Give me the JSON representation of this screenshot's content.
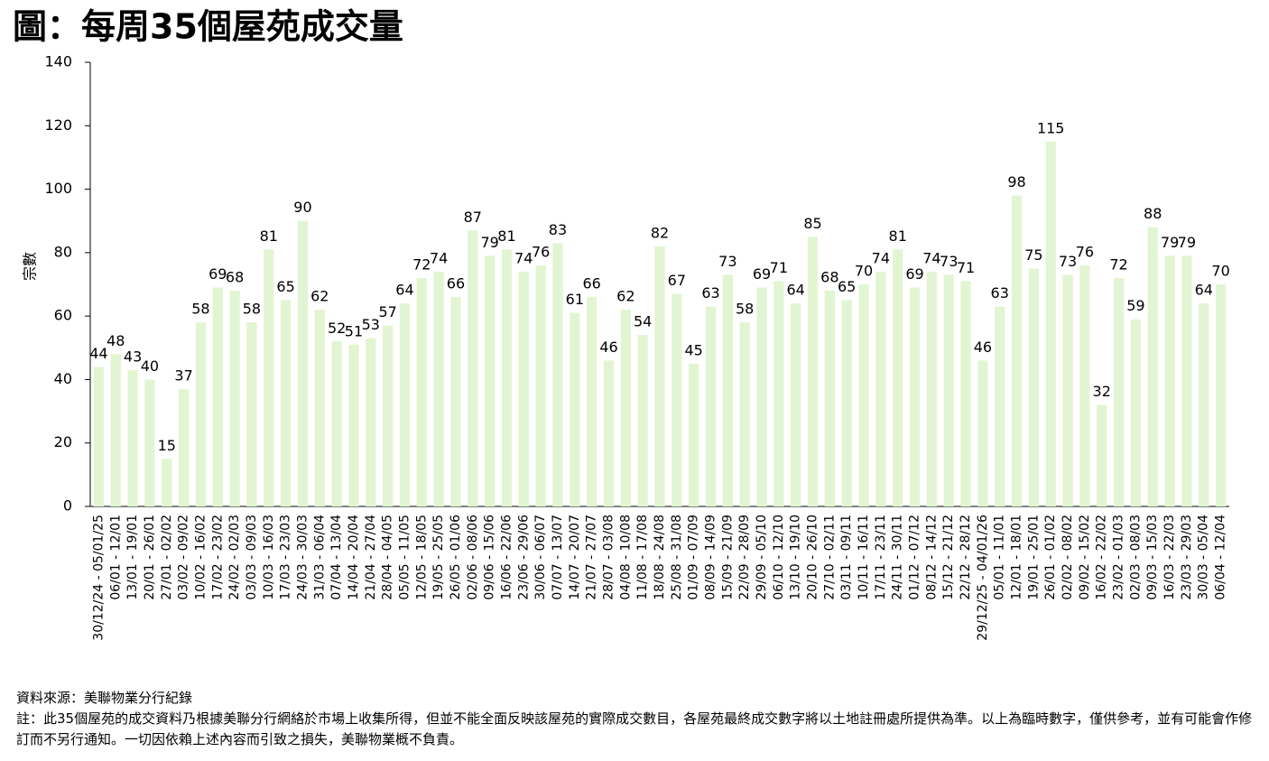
{
  "chart_data": {
    "type": "bar",
    "title": "圖：每周35個屋苑成交量",
    "y_label": "宗數",
    "categories": [
      "30/12/24 - 05/01/25",
      "06/01 - 12/01",
      "13/01 - 19/01",
      "20/01 - 26/01",
      "27/01 - 02/02",
      "03/02 - 09/02",
      "10/02 - 16/02",
      "17/02 - 23/02",
      "24/02 - 02/03",
      "03/03 - 09/03",
      "10/03 - 16/03",
      "17/03 - 23/03",
      "24/03 - 30/03",
      "31/03 - 06/04",
      "07/04 - 13/04",
      "14/04 - 20/04",
      "21/04 - 27/04",
      "28/04 - 04/05",
      "05/05 - 11/05",
      "12/05 - 18/05",
      "19/05 - 25/05",
      "26/05 - 01/06",
      "02/06 - 08/06",
      "09/06 - 15/06",
      "16/06 - 22/06",
      "23/06 - 29/06",
      "30/06 - 06/07",
      "07/07 - 13/07",
      "14/07 - 20/07",
      "21/07 - 27/07",
      "28/07 - 03/08",
      "04/08 - 10/08",
      "11/08 - 17/08",
      "18/08 - 24/08",
      "25/08 - 31/08",
      "01/09 - 07/09",
      "08/09 - 14/09",
      "15/09 - 21/09",
      "22/09 - 28/09",
      "29/09 - 05/10",
      "06/10 - 12/10",
      "13/10 - 19/10",
      "20/10 - 26/10",
      "27/10 - 02/11",
      "03/11 - 09/11",
      "10/11 - 16/11",
      "17/11 - 23/11",
      "24/11 - 30/11",
      "01/12 - 07/12",
      "08/12 - 14/12",
      "15/12 - 21/12",
      "22/12 - 28/12",
      "29/12/25 - 04/01/26",
      "05/01 - 11/01",
      "12/01 - 18/01",
      "19/01 - 25/01",
      "26/01 - 01/02",
      "02/02 - 08/02",
      "09/02 - 15/02",
      "16/02 - 22/02",
      "23/02 - 01/03",
      "02/03 - 08/03",
      "09/03 - 15/03",
      "16/03 - 22/03",
      "23/03 - 29/03",
      "30/03 - 05/04",
      "06/04 - 12/04"
    ],
    "values": [
      44,
      48,
      43,
      40,
      15,
      37,
      58,
      69,
      68,
      58,
      81,
      65,
      90,
      62,
      52,
      51,
      53,
      57,
      64,
      72,
      74,
      66,
      87,
      79,
      81,
      74,
      76,
      83,
      61,
      66,
      46,
      62,
      54,
      82,
      67,
      45,
      63,
      73,
      58,
      69,
      71,
      64,
      85,
      68,
      65,
      70,
      74,
      81,
      69,
      74,
      73,
      71,
      46,
      63,
      98,
      75,
      115,
      73,
      76,
      32,
      72,
      59,
      88,
      79,
      79,
      64,
      70
    ],
    "color": "#e2f5d3",
    "ylim": [
      0,
      140
    ],
    "yticks": [
      0,
      20,
      40,
      60,
      80,
      100,
      120,
      140
    ],
    "grid": false
  },
  "footer": {
    "source": "資料來源：美聯物業分行紀錄",
    "note": "註：此35個屋苑的成交資料乃根據美聯分行網絡於市場上收集所得，但並不能全面反映該屋苑的實際成交數目，各屋苑最終成交數字將以土地註冊處所提供為準。以上為臨時數字，僅供參考，並有可能會作修訂而不另行通知。一切因依賴上述內容而引致之損失，美聯物業概不負責。"
  }
}
